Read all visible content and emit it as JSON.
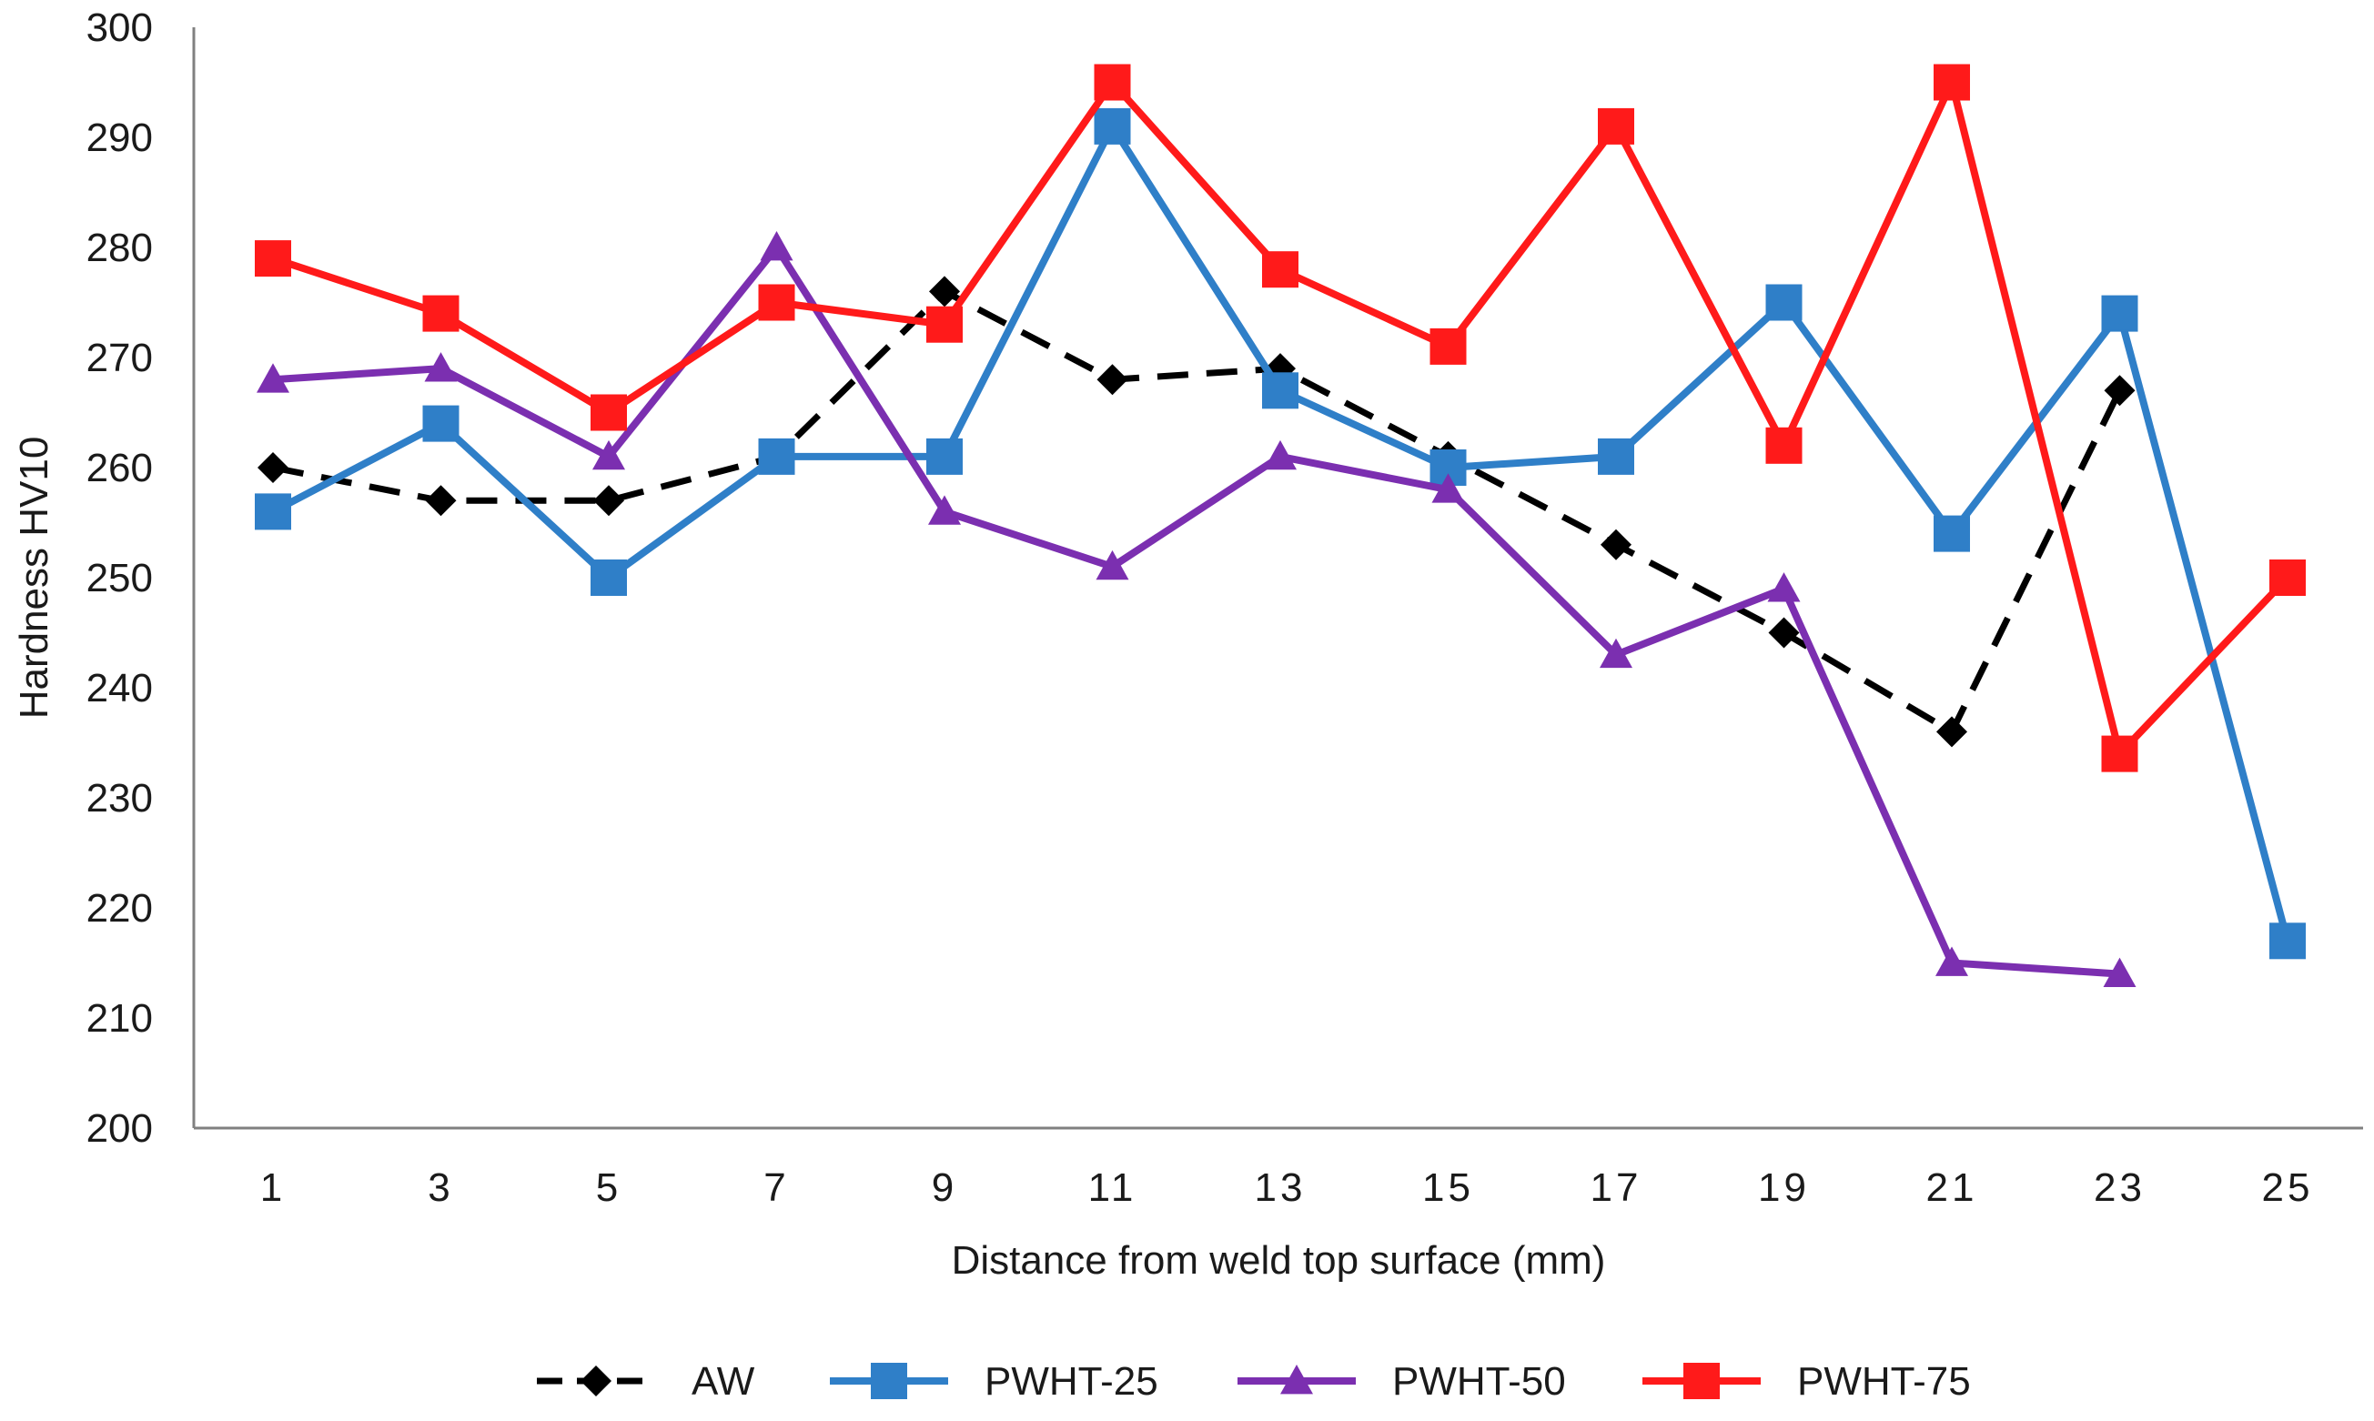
{
  "chart_data": {
    "type": "line",
    "title": "",
    "xlabel": "Distance from weld top surface (mm)",
    "ylabel": "Hardness HV10",
    "categories": [
      "1",
      "3",
      "5",
      "7",
      "9",
      "11",
      "13",
      "15",
      "17",
      "19",
      "21",
      "23",
      "25"
    ],
    "ylim": [
      200,
      300
    ],
    "yticks": [
      200,
      210,
      220,
      230,
      240,
      250,
      260,
      270,
      280,
      290,
      300
    ],
    "grid": false,
    "legend_position": "bottom",
    "series": [
      {
        "name": "AW",
        "color": "#000000",
        "marker": "diamond",
        "dash": true,
        "values": [
          260,
          257,
          257,
          261,
          276,
          268,
          269,
          261,
          253,
          245,
          236,
          267,
          null
        ]
      },
      {
        "name": "PWHT-25",
        "color": "#2f7fc8",
        "marker": "square",
        "dash": false,
        "values": [
          256,
          264,
          250,
          261,
          261,
          291,
          267,
          260,
          261,
          275,
          254,
          274,
          217
        ]
      },
      {
        "name": "PWHT-50",
        "color": "#7b2fb0",
        "marker": "triangle",
        "dash": false,
        "values": [
          268,
          269,
          261,
          280,
          256,
          251,
          261,
          258,
          243,
          249,
          215,
          214,
          null
        ]
      },
      {
        "name": "PWHT-75",
        "color": "#ff1a1a",
        "marker": "square",
        "dash": false,
        "values": [
          279,
          274,
          265,
          275,
          273,
          295,
          278,
          271,
          291,
          262,
          295,
          234,
          250
        ]
      }
    ]
  }
}
